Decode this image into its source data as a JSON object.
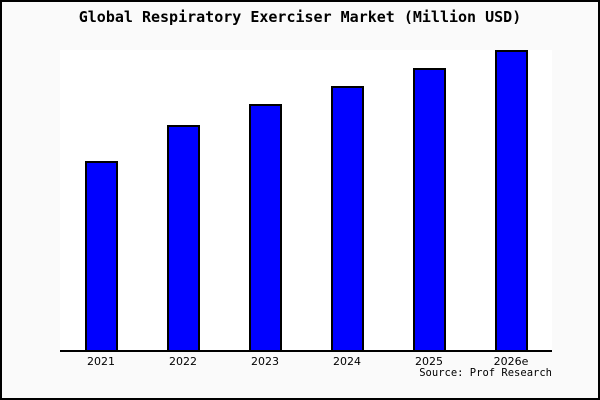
{
  "title": "Global Respiratory Exerciser Market (Million USD)",
  "source": "Source: Prof Research",
  "colors": {
    "bar_fill": "#0000ff",
    "bar_border": "#000000",
    "plot_background": "#ffffff",
    "page_background": "#fafafa",
    "frame_border": "#000000",
    "text": "#000000"
  },
  "chart_data": {
    "type": "bar",
    "title": "Global Respiratory Exerciser Market (Million USD)",
    "categories": [
      "2021",
      "2022",
      "2023",
      "2024",
      "2025",
      "2026e"
    ],
    "values": [
      63,
      75,
      82,
      88,
      94,
      100
    ],
    "xlabel": "",
    "ylabel": "",
    "ylim": [
      0,
      100
    ],
    "grid": false,
    "legend": "none",
    "y_axis_shown": false,
    "note": "No y-axis scale is shown in the image; values are relative bar heights normalized so 2026e = 100.",
    "source": "Source: Prof Research"
  }
}
